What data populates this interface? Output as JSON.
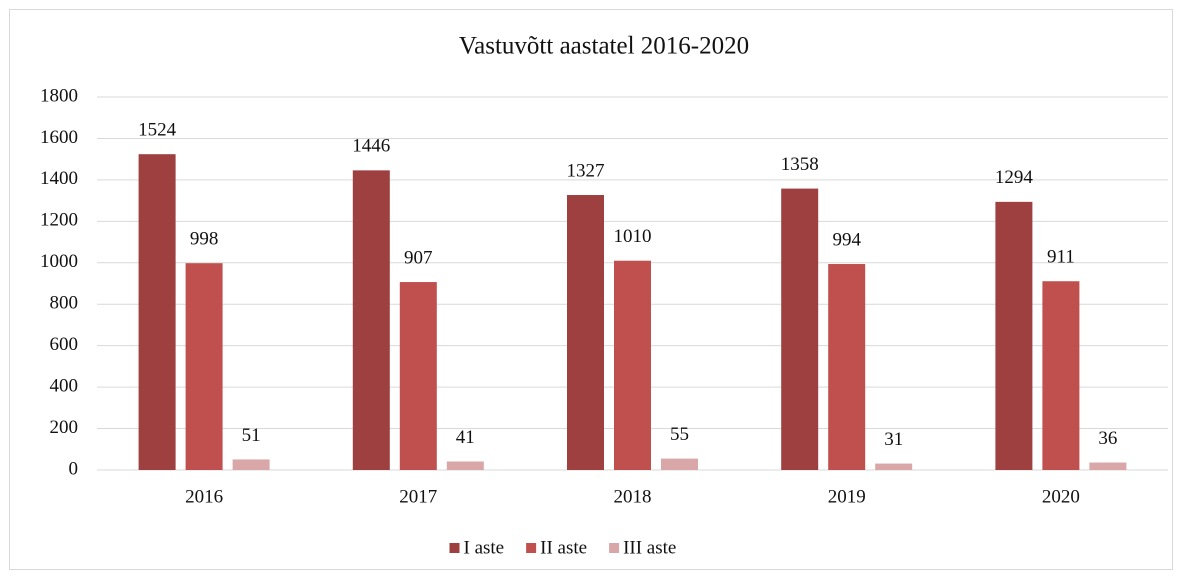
{
  "chart_data": {
    "type": "bar",
    "title": "Vastuvõtt aastatel 2016-2020",
    "categories": [
      "2016",
      "2017",
      "2018",
      "2019",
      "2020"
    ],
    "series": [
      {
        "name": "I aste",
        "color": "#9e403f",
        "values": [
          1524,
          1446,
          1327,
          1358,
          1294
        ]
      },
      {
        "name": "II aste",
        "color": "#c0504d",
        "values": [
          998,
          907,
          1010,
          994,
          911
        ]
      },
      {
        "name": "III aste",
        "color": "#d9a7a7",
        "values": [
          51,
          41,
          55,
          31,
          36
        ]
      }
    ],
    "ylim": [
      0,
      1800
    ],
    "yticks": [
      0,
      200,
      400,
      600,
      800,
      1000,
      1200,
      1400,
      1600,
      1800
    ],
    "grid": true,
    "legend": "bottom"
  }
}
